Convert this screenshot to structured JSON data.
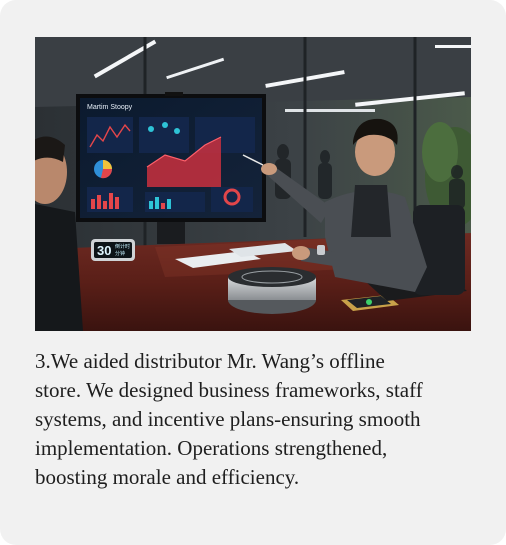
{
  "photo": {
    "tv_title": "Martim Stoopy",
    "clock_time": "30",
    "clock_label_top": "倒计时",
    "clock_label_bottom": "分钟"
  },
  "caption": {
    "lines": [
      "3.We aided distributor Mr. Wang’s offline",
      "store. We designed business frameworks, staff",
      "systems, and incentive plans-ensuring smooth",
      "implementation. Operations strengthened,",
      "boosting morale and efficiency."
    ]
  },
  "colors": {
    "card_background": "#f1f1f1",
    "caption_text": "#1e1e1e"
  }
}
